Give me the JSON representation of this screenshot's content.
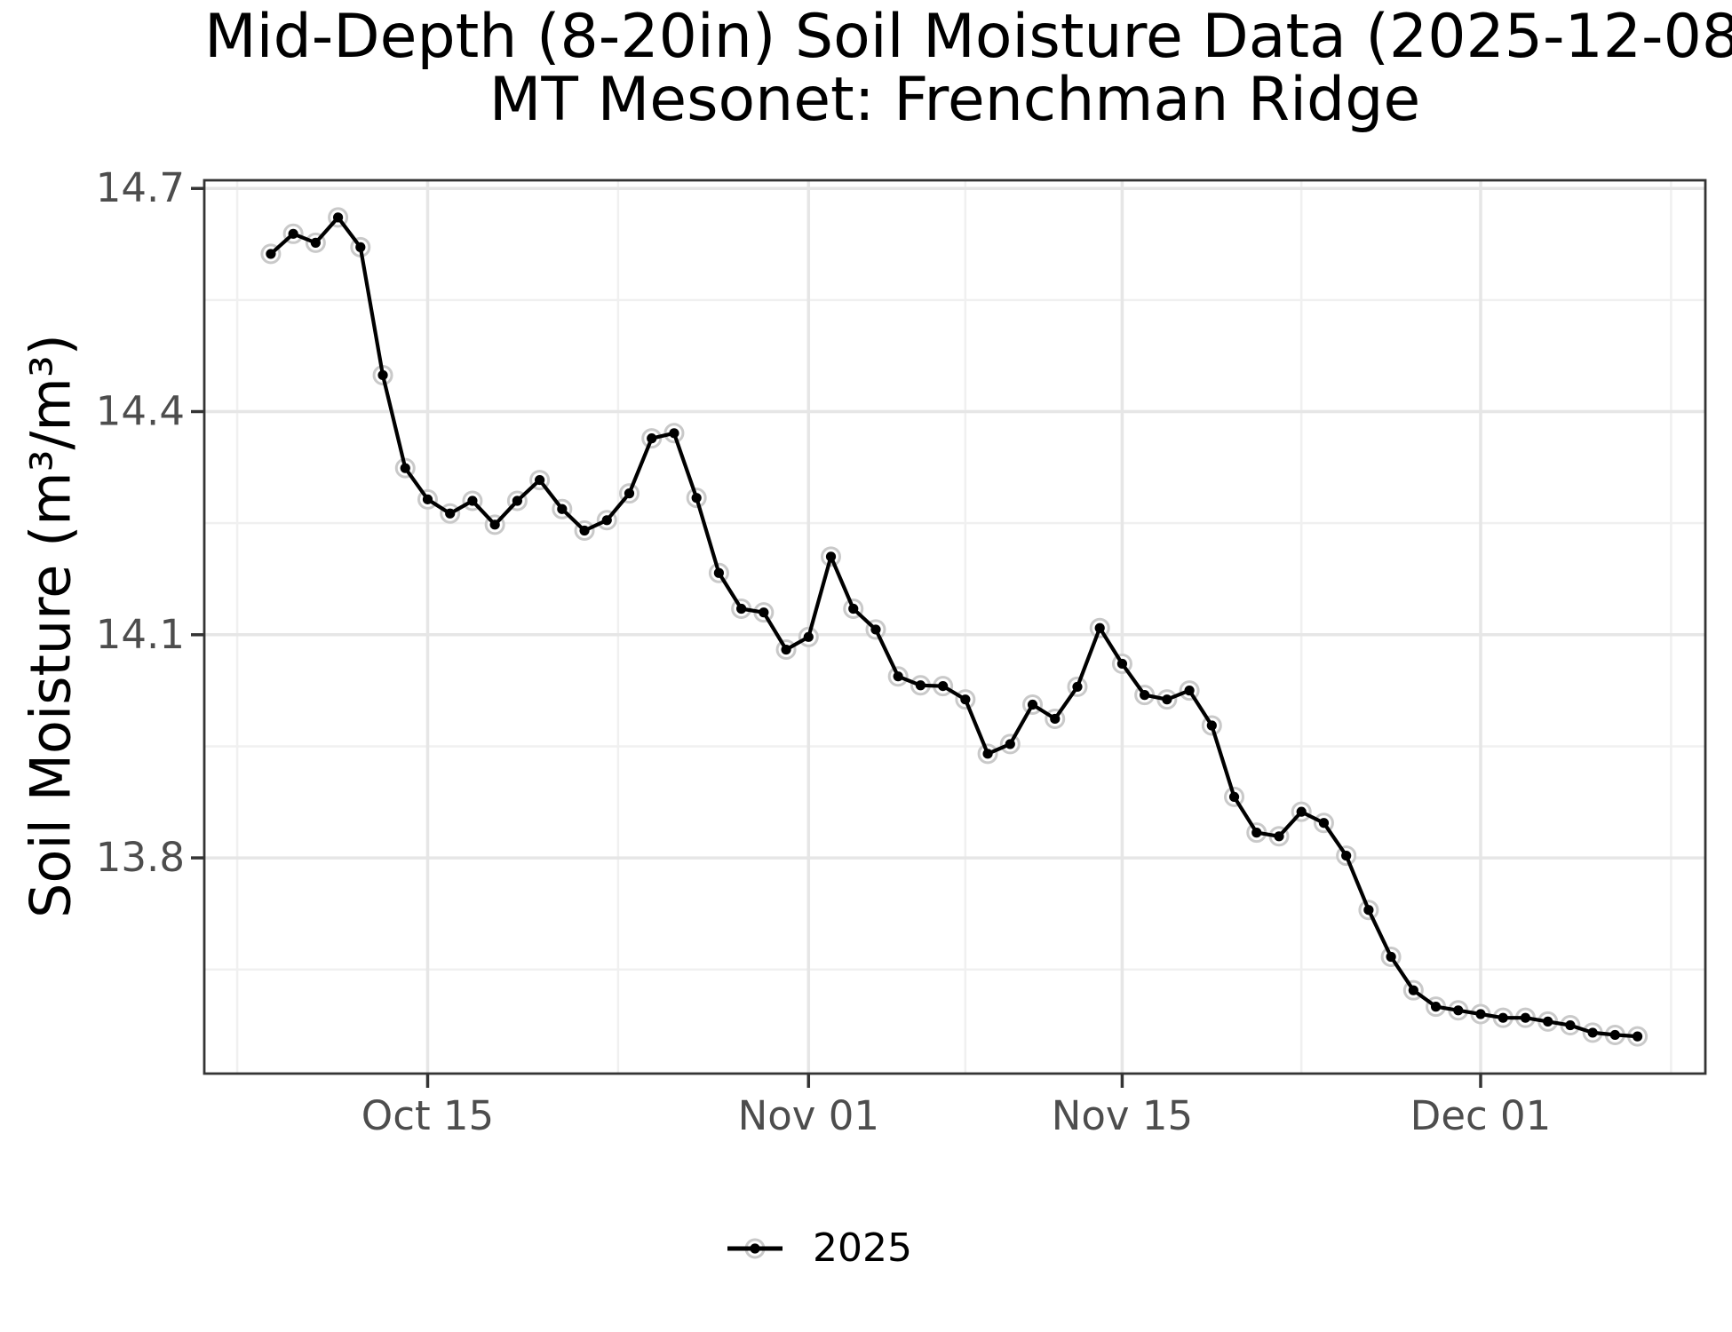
{
  "chart_data": {
    "type": "line",
    "title": "Mid-Depth (8-20in) Soil Moisture Data (2025-12-08",
    "subtitle": "MT Mesonet: Frenchman Ridge",
    "xlabel": "",
    "ylabel": "Soil Moisture (m³/m³)",
    "grid": true,
    "legend_position": "bottom",
    "x_epoch": "2025-10-08",
    "x_domain_days": [
      -2.97,
      64.03
    ],
    "ylim": [
      13.51,
      14.711
    ],
    "x_ticks": [
      {
        "date": "2025-10-15",
        "label": "Oct 15"
      },
      {
        "date": "2025-11-01",
        "label": "Nov 01"
      },
      {
        "date": "2025-11-15",
        "label": "Nov 15"
      },
      {
        "date": "2025-12-01",
        "label": "Dec 01"
      }
    ],
    "x_minor_days": [
      -1.5,
      15.5,
      31,
      46,
      62.5
    ],
    "y_ticks": [
      {
        "value": 14.7,
        "label": "14.7"
      },
      {
        "value": 14.4,
        "label": "14.4"
      },
      {
        "value": 14.1,
        "label": "14.1"
      },
      {
        "value": 13.8,
        "label": "13.8"
      }
    ],
    "y_minor_ticks": [
      14.55,
      14.25,
      13.95,
      13.65
    ],
    "style": {
      "line_color": "#000000",
      "marker_core": "#000000",
      "marker_halo": "#c9c9c9",
      "grid_major": "#e6e6e6",
      "grid_minor": "#f0f0f0",
      "frame": "#343434",
      "tick_label": "#4d4d4d",
      "text": "#000000",
      "background": "#ffffff"
    },
    "series": [
      {
        "name": "2025",
        "color": "#000000",
        "marker": "circle-halo",
        "dates": [
          "2025-10-08",
          "2025-10-09",
          "2025-10-10",
          "2025-10-11",
          "2025-10-12",
          "2025-10-13",
          "2025-10-14",
          "2025-10-15",
          "2025-10-16",
          "2025-10-17",
          "2025-10-18",
          "2025-10-19",
          "2025-10-20",
          "2025-10-21",
          "2025-10-22",
          "2025-10-23",
          "2025-10-24",
          "2025-10-25",
          "2025-10-26",
          "2025-10-27",
          "2025-10-28",
          "2025-10-29",
          "2025-10-30",
          "2025-10-31",
          "2025-11-01",
          "2025-11-02",
          "2025-11-03",
          "2025-11-04",
          "2025-11-05",
          "2025-11-06",
          "2025-11-07",
          "2025-11-08",
          "2025-11-09",
          "2025-11-10",
          "2025-11-11",
          "2025-11-12",
          "2025-11-13",
          "2025-11-14",
          "2025-11-15",
          "2025-11-16",
          "2025-11-17",
          "2025-11-18",
          "2025-11-19",
          "2025-11-20",
          "2025-11-21",
          "2025-11-22",
          "2025-11-23",
          "2025-11-24",
          "2025-11-25",
          "2025-11-26",
          "2025-11-27",
          "2025-11-28",
          "2025-11-29",
          "2025-11-30",
          "2025-12-01",
          "2025-12-02",
          "2025-12-03",
          "2025-12-04",
          "2025-12-05",
          "2025-12-06",
          "2025-12-07",
          "2025-12-08"
        ],
        "values": [
          14.612,
          14.639,
          14.627,
          14.661,
          14.621,
          14.449,
          14.324,
          14.282,
          14.263,
          14.28,
          14.248,
          14.28,
          14.308,
          14.269,
          14.24,
          14.254,
          14.29,
          14.364,
          14.371,
          14.284,
          14.183,
          14.135,
          14.13,
          14.08,
          14.097,
          14.205,
          14.135,
          14.107,
          14.044,
          14.032,
          14.031,
          14.013,
          13.94,
          13.953,
          14.006,
          13.987,
          14.03,
          14.109,
          14.061,
          14.019,
          14.013,
          14.025,
          13.978,
          13.882,
          13.834,
          13.829,
          13.862,
          13.847,
          13.803,
          13.73,
          13.667,
          13.622,
          13.6,
          13.595,
          13.59,
          13.585,
          13.585,
          13.58,
          13.575,
          13.565,
          13.562,
          13.56
        ]
      }
    ]
  }
}
